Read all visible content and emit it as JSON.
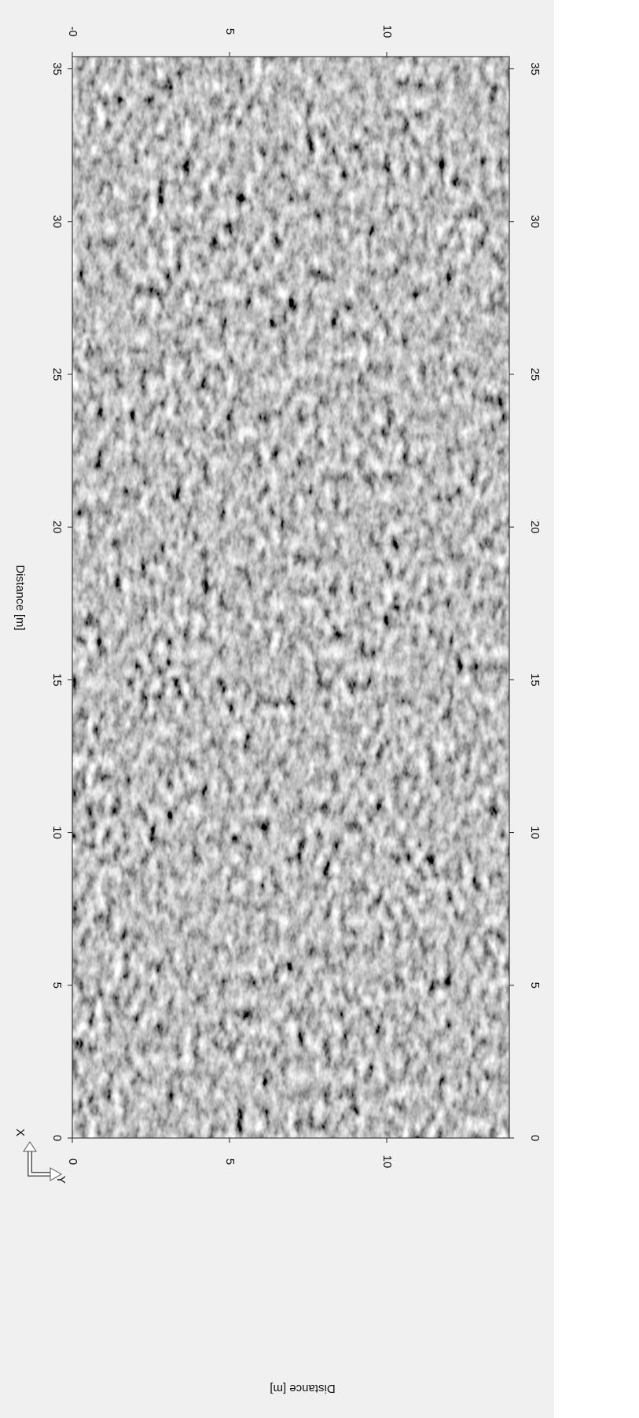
{
  "chart_data": {
    "type": "heatmap",
    "x_label": "Distance [m]",
    "y_label": "Distance [m]",
    "xlim": [
      0,
      35.4
    ],
    "xticks": [
      0,
      5,
      10,
      15,
      20,
      25,
      30,
      35
    ],
    "ylim": [
      0,
      13.9
    ],
    "yticks": [
      0,
      5,
      10
    ],
    "y_top_ticks": [
      {
        "value": 0,
        "label": "-0"
      },
      5,
      10
    ],
    "axis_icon": {
      "x": "X",
      "y": "Y"
    }
  }
}
